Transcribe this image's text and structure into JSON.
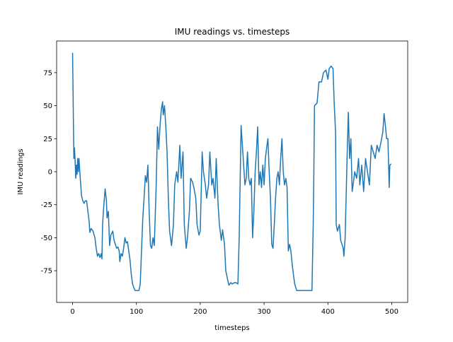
{
  "chart_data": {
    "type": "line",
    "title": "IMU readings vs. timesteps",
    "x_label": "timesteps",
    "y_label": "IMU readings",
    "color": "#1f77b4",
    "xlim": [
      -25,
      525
    ],
    "ylim": [
      -99,
      99
    ],
    "xticks": [
      0,
      100,
      200,
      300,
      400,
      500
    ],
    "yticks": [
      -75,
      -50,
      -25,
      0,
      25,
      50,
      75
    ],
    "grid": false,
    "x": [
      0,
      1,
      2,
      3,
      4,
      5,
      6,
      7,
      8,
      9,
      10,
      12,
      14,
      16,
      18,
      20,
      22,
      24,
      26,
      27,
      29,
      32,
      35,
      37,
      39,
      41,
      43,
      45,
      46,
      47,
      49,
      51,
      53,
      54,
      56,
      58,
      60,
      63,
      65,
      67,
      69,
      71,
      73,
      74,
      76,
      78,
      80,
      82,
      84,
      86,
      88,
      90,
      92,
      94,
      96,
      98,
      100,
      104,
      106,
      108,
      110,
      112,
      114,
      116,
      118,
      120,
      122,
      124,
      126,
      128,
      131,
      133,
      135,
      137,
      139,
      141,
      142,
      144,
      146,
      148,
      150,
      152,
      155,
      158,
      160,
      163,
      165,
      168,
      170,
      173,
      175,
      178,
      180,
      183,
      185,
      188,
      190,
      193,
      195,
      198,
      200,
      203,
      205,
      208,
      210,
      213,
      215,
      218,
      220,
      223,
      225,
      228,
      230,
      233,
      235,
      238,
      240,
      243,
      245,
      248,
      250,
      254,
      256,
      259,
      261,
      264,
      266,
      268,
      270,
      272,
      274,
      276,
      278,
      280,
      282,
      284,
      286,
      288,
      290,
      292,
      294,
      296,
      298,
      300,
      302,
      304,
      306,
      308,
      310,
      312,
      314,
      316,
      318,
      320,
      322,
      324,
      326,
      328,
      330,
      332,
      334,
      336,
      338,
      340,
      342,
      344,
      346,
      348,
      351,
      358,
      368,
      375,
      377,
      378,
      379,
      383,
      386,
      390,
      393,
      397,
      400,
      402,
      405,
      408,
      410,
      412,
      413,
      415,
      418,
      420,
      422,
      424,
      425,
      427,
      430,
      432,
      434,
      436,
      438,
      440,
      442,
      445,
      448,
      450,
      453,
      456,
      459,
      462,
      465,
      468,
      471,
      474,
      477,
      480,
      483,
      486,
      488,
      490,
      492,
      494,
      496,
      497,
      499
    ],
    "values": [
      90,
      50,
      10,
      18,
      8,
      -5,
      5,
      -2,
      10,
      0,
      10,
      -5,
      -18,
      -22,
      -24,
      -22,
      -22,
      -30,
      -38,
      -46,
      -43,
      -45,
      -50,
      -58,
      -64,
      -62,
      -65,
      -62,
      -66,
      -40,
      -25,
      -13,
      -22,
      -35,
      -30,
      -56,
      -48,
      -45,
      -52,
      -55,
      -58,
      -57,
      -60,
      -68,
      -62,
      -64,
      -58,
      -50,
      -54,
      -53,
      -60,
      -67,
      -78,
      -85,
      -88,
      -90,
      -90,
      -90,
      -85,
      -60,
      -35,
      -20,
      -3,
      -8,
      5,
      -30,
      -56,
      -58,
      -50,
      -56,
      -10,
      34,
      17,
      35,
      47,
      53,
      43,
      50,
      35,
      15,
      -20,
      -45,
      -56,
      -40,
      -10,
      0,
      -8,
      20,
      -5,
      15,
      -40,
      -58,
      -50,
      -30,
      -5,
      -8,
      -12,
      -20,
      -40,
      -48,
      -45,
      15,
      0,
      -10,
      -20,
      -10,
      15,
      -10,
      -5,
      -20,
      10,
      -25,
      -40,
      -52,
      -44,
      -55,
      -75,
      -82,
      -86,
      -84,
      -85,
      -84,
      -84,
      -85,
      -50,
      35,
      20,
      5,
      -10,
      -5,
      15,
      -5,
      -10,
      -5,
      -50,
      -30,
      0,
      15,
      34,
      -10,
      0,
      -12,
      5,
      -10,
      10,
      18,
      25,
      0,
      -20,
      -55,
      -58,
      -40,
      -20,
      -5,
      0,
      -10,
      10,
      25,
      0,
      -10,
      -5,
      -12,
      -60,
      -55,
      -60,
      -70,
      -78,
      -85,
      -90,
      -90,
      -90,
      -90,
      -40,
      0,
      50,
      52,
      68,
      68,
      75,
      77,
      70,
      78,
      80,
      78,
      50,
      30,
      -40,
      -45,
      -40,
      -52,
      -55,
      -58,
      -64,
      -50,
      10,
      45,
      10,
      25,
      -15,
      -8,
      0,
      -5,
      10,
      -10,
      5,
      -15,
      10,
      0,
      -10,
      20,
      15,
      10,
      20,
      15,
      22,
      30,
      44,
      35,
      25,
      25,
      -12,
      5,
      6
    ]
  }
}
